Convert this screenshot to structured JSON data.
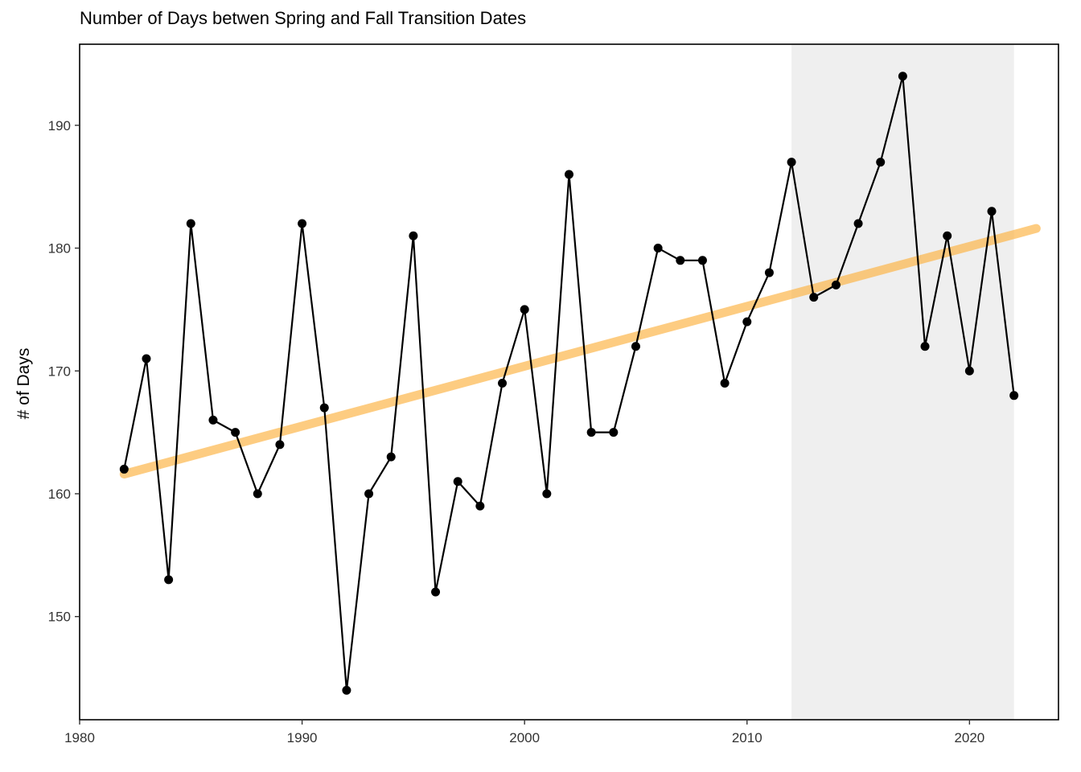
{
  "chart_data": {
    "type": "line",
    "title": "Number of Days betwen Spring and Fall Transition Dates",
    "xlabel": "",
    "ylabel": "# of Days",
    "xlim": [
      1980,
      2024
    ],
    "ylim": [
      141.6,
      196.6
    ],
    "x_ticks": [
      1980,
      1990,
      2000,
      2010,
      2020
    ],
    "y_ticks": [
      150,
      160,
      170,
      180,
      190
    ],
    "grid": false,
    "legend": "none",
    "highlight_band": {
      "x_start": 2012,
      "x_end": 2022,
      "color": "#efefef"
    },
    "series": [
      {
        "type": "line+points",
        "color": "#000000",
        "x": [
          1982,
          1983,
          1984,
          1985,
          1986,
          1987,
          1988,
          1989,
          1990,
          1991,
          1992,
          1993,
          1994,
          1995,
          1996,
          1997,
          1998,
          1999,
          2000,
          2001,
          2002,
          2003,
          2004,
          2005,
          2006,
          2007,
          2008,
          2009,
          2010,
          2011,
          2012,
          2013,
          2014,
          2015,
          2016,
          2017,
          2018,
          2019,
          2020,
          2021,
          2022
        ],
        "y": [
          162,
          171,
          153,
          182,
          166,
          165,
          160,
          164,
          182,
          167,
          144,
          160,
          163,
          181,
          152,
          161,
          159,
          169,
          175,
          160,
          186,
          165,
          165,
          172,
          180,
          179,
          179,
          169,
          174,
          178,
          187,
          176,
          177,
          182,
          187,
          194,
          172,
          181,
          170,
          183,
          168
        ]
      },
      {
        "type": "trend",
        "color": "#fdb74c",
        "x": [
          1982,
          2023
        ],
        "y": [
          161.6,
          181.6
        ]
      }
    ]
  }
}
